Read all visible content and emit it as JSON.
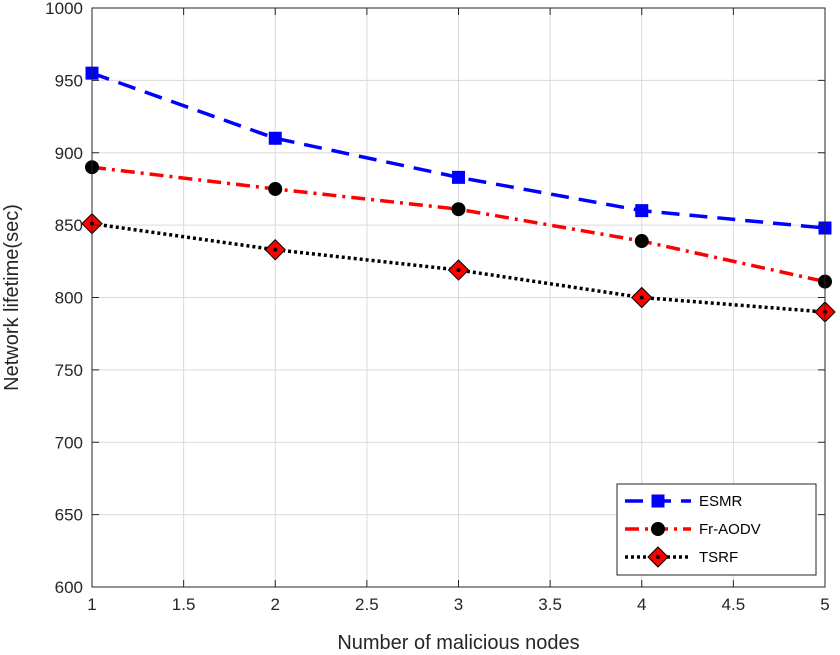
{
  "chart_data": {
    "type": "line",
    "title": "",
    "xlabel": "Number of malicious nodes",
    "ylabel": "Network lifetime(sec)",
    "xlim": [
      1,
      5
    ],
    "ylim": [
      600,
      1000
    ],
    "xticks": [
      1,
      1.5,
      2,
      2.5,
      3,
      3.5,
      4,
      4.5,
      5
    ],
    "xtick_labels": [
      "1",
      "1.5",
      "2",
      "2.5",
      "3",
      "3.5",
      "4",
      "4.5",
      "5"
    ],
    "yticks": [
      600,
      650,
      700,
      750,
      800,
      850,
      900,
      950,
      1000
    ],
    "ytick_labels": [
      "600",
      "650",
      "700",
      "750",
      "800",
      "850",
      "900",
      "950",
      "1000"
    ],
    "grid": true,
    "legend_position": "bottom-right",
    "x": [
      1,
      2,
      3,
      4,
      5
    ],
    "series": [
      {
        "name": "ESMR",
        "values": [
          955,
          910,
          883,
          860,
          848
        ],
        "color": "#0000ff",
        "line_style": "dashed",
        "marker": "square",
        "marker_fill": "#0000ff",
        "marker_edge": "#0000ff"
      },
      {
        "name": "Fr-AODV",
        "values": [
          890,
          875,
          861,
          839,
          811
        ],
        "color": "#ff0000",
        "line_style": "dash-dot",
        "marker": "circle",
        "marker_fill": "#000000",
        "marker_edge": "#000000"
      },
      {
        "name": "TSRF",
        "values": [
          851,
          833,
          819,
          800,
          790
        ],
        "color": "#000000",
        "line_style": "dotted",
        "marker": "diamond",
        "marker_fill": "#ff0000",
        "marker_edge": "#000000"
      }
    ]
  }
}
